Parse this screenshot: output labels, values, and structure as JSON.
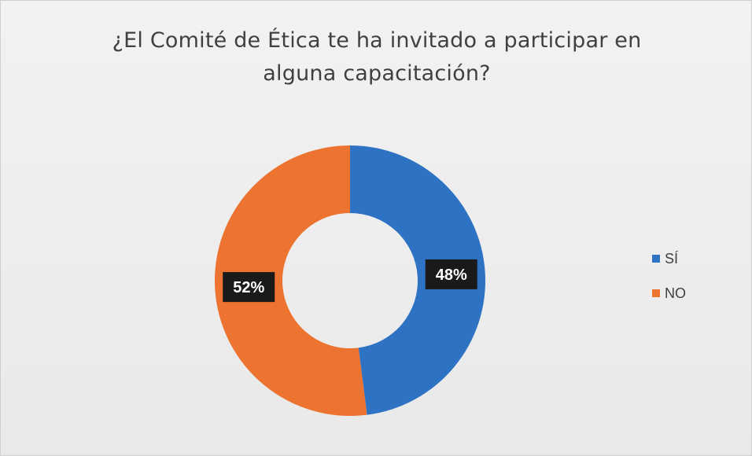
{
  "chart_data": {
    "type": "pie",
    "variant": "donut",
    "title_lines": [
      "¿El Comité de Ética te ha invitado a participar en",
      "alguna capacitación?"
    ],
    "categories": [
      "SÍ",
      "NO"
    ],
    "values": [
      48,
      52
    ],
    "data_labels": [
      "48%",
      "52%"
    ],
    "colors": [
      "#2e72c4",
      "#ec7330"
    ],
    "legend_position": "right",
    "start_angle_deg": 0,
    "direction": "clockwise"
  }
}
